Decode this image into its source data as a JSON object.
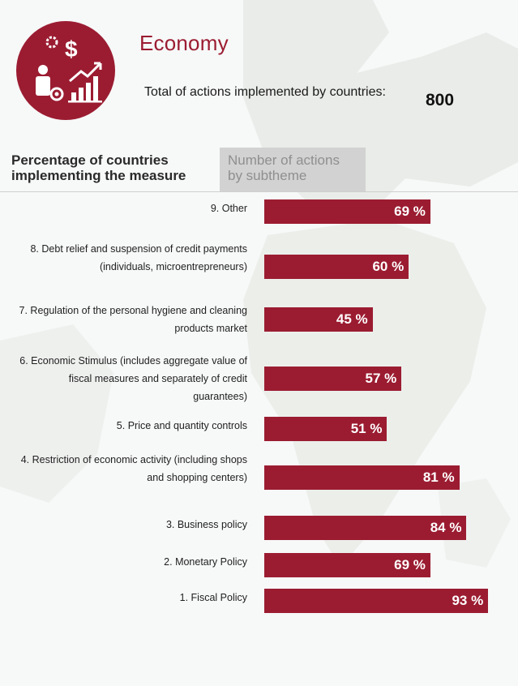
{
  "header": {
    "title": "Economy",
    "total_label": "Total of actions implemented by countries:",
    "total_value": "800"
  },
  "tabs": [
    {
      "label": "Percentage of countries implementing the measure",
      "active": true
    },
    {
      "label": "Number of actions by subtheme",
      "active": false
    }
  ],
  "colors": {
    "accent": "#9b1c31",
    "bar": "#9b1c31",
    "tab_inactive": "#d2d2d2"
  },
  "chart_data": {
    "type": "bar",
    "orientation": "horizontal",
    "categories": [
      "9. Other",
      "8. Debt relief and suspension of credit payments (individuals, microentrepreneurs)",
      "7. Regulation of the personal hygiene and cleaning products market",
      "6. Economic Stimulus (includes aggregate value of fiscal measures and separately of credit guarantees)",
      "5. Price and quantity controls",
      "4. Restriction of economic activity (including shops and shopping centers)",
      "3. Business policy",
      "2. Monetary Policy",
      "1. Fiscal Policy"
    ],
    "values": [
      69,
      60,
      45,
      57,
      51,
      81,
      84,
      69,
      93
    ],
    "value_labels": [
      "69 %",
      "60 %",
      "45 %",
      "57 %",
      "51 %",
      "81 %",
      "84 %",
      "69 %",
      "93 %"
    ],
    "xlim": [
      0,
      100
    ]
  }
}
